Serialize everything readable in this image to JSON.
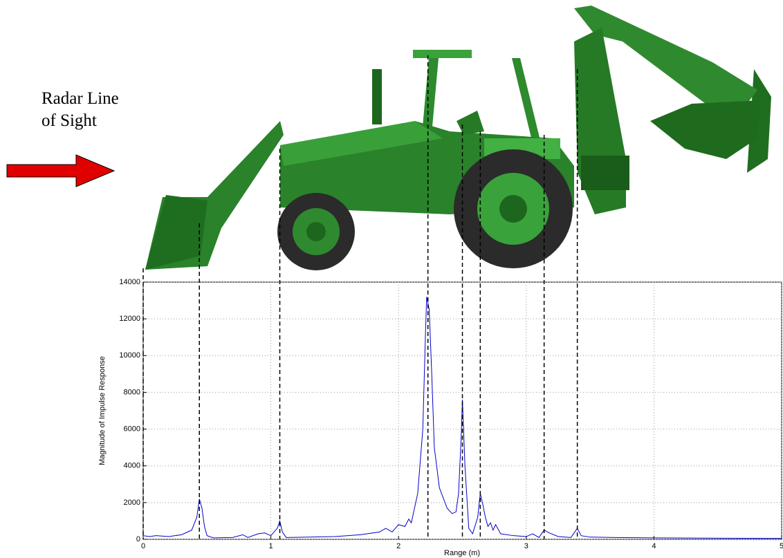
{
  "chart_data": {
    "type": "line",
    "annotation_lines": [
      "Radar Line",
      "of Sight"
    ],
    "xlabel": "Range (m)",
    "ylabel": "Magnitude of Impulse Response",
    "xlim": [
      0,
      5
    ],
    "ylim": [
      0,
      14000
    ],
    "xticks": [
      0,
      1,
      2,
      3,
      4,
      5
    ],
    "yticks": [
      0,
      2000,
      4000,
      6000,
      8000,
      10000,
      12000,
      14000
    ],
    "grid": true,
    "marker_x": [
      0,
      0.44,
      1.07,
      2.23,
      2.5,
      2.64,
      3.14,
      3.4
    ],
    "series": [
      {
        "color": "#0000cc",
        "x": [
          0,
          0.05,
          0.1,
          0.2,
          0.3,
          0.38,
          0.42,
          0.44,
          0.46,
          0.48,
          0.5,
          0.55,
          0.7,
          0.78,
          0.82,
          0.9,
          0.95,
          1.0,
          1.05,
          1.07,
          1.09,
          1.12,
          1.3,
          1.5,
          1.7,
          1.85,
          1.9,
          1.95,
          2.0,
          2.05,
          2.08,
          2.1,
          2.15,
          2.19,
          2.21,
          2.22,
          2.24,
          2.26,
          2.28,
          2.32,
          2.38,
          2.42,
          2.45,
          2.47,
          2.49,
          2.5,
          2.52,
          2.55,
          2.58,
          2.62,
          2.64,
          2.66,
          2.68,
          2.7,
          2.72,
          2.74,
          2.76,
          2.8,
          2.9,
          3.0,
          3.05,
          3.1,
          3.14,
          3.18,
          3.25,
          3.35,
          3.4,
          3.43,
          3.5,
          3.7,
          4.0,
          4.5,
          5.0
        ],
        "values": [
          200,
          150,
          200,
          150,
          250,
          500,
          1200,
          2200,
          1700,
          700,
          200,
          80,
          100,
          250,
          100,
          300,
          350,
          200,
          600,
          1000,
          400,
          100,
          120,
          150,
          250,
          400,
          600,
          400,
          800,
          700,
          1100,
          900,
          2500,
          6000,
          11000,
          13200,
          12500,
          9000,
          5000,
          2800,
          1700,
          1400,
          1500,
          2500,
          5500,
          7600,
          4000,
          600,
          300,
          1200,
          2500,
          1900,
          1200,
          700,
          900,
          500,
          800,
          300,
          200,
          150,
          300,
          100,
          500,
          350,
          150,
          100,
          600,
          200,
          120,
          100,
          80,
          60,
          50
        ]
      }
    ]
  }
}
